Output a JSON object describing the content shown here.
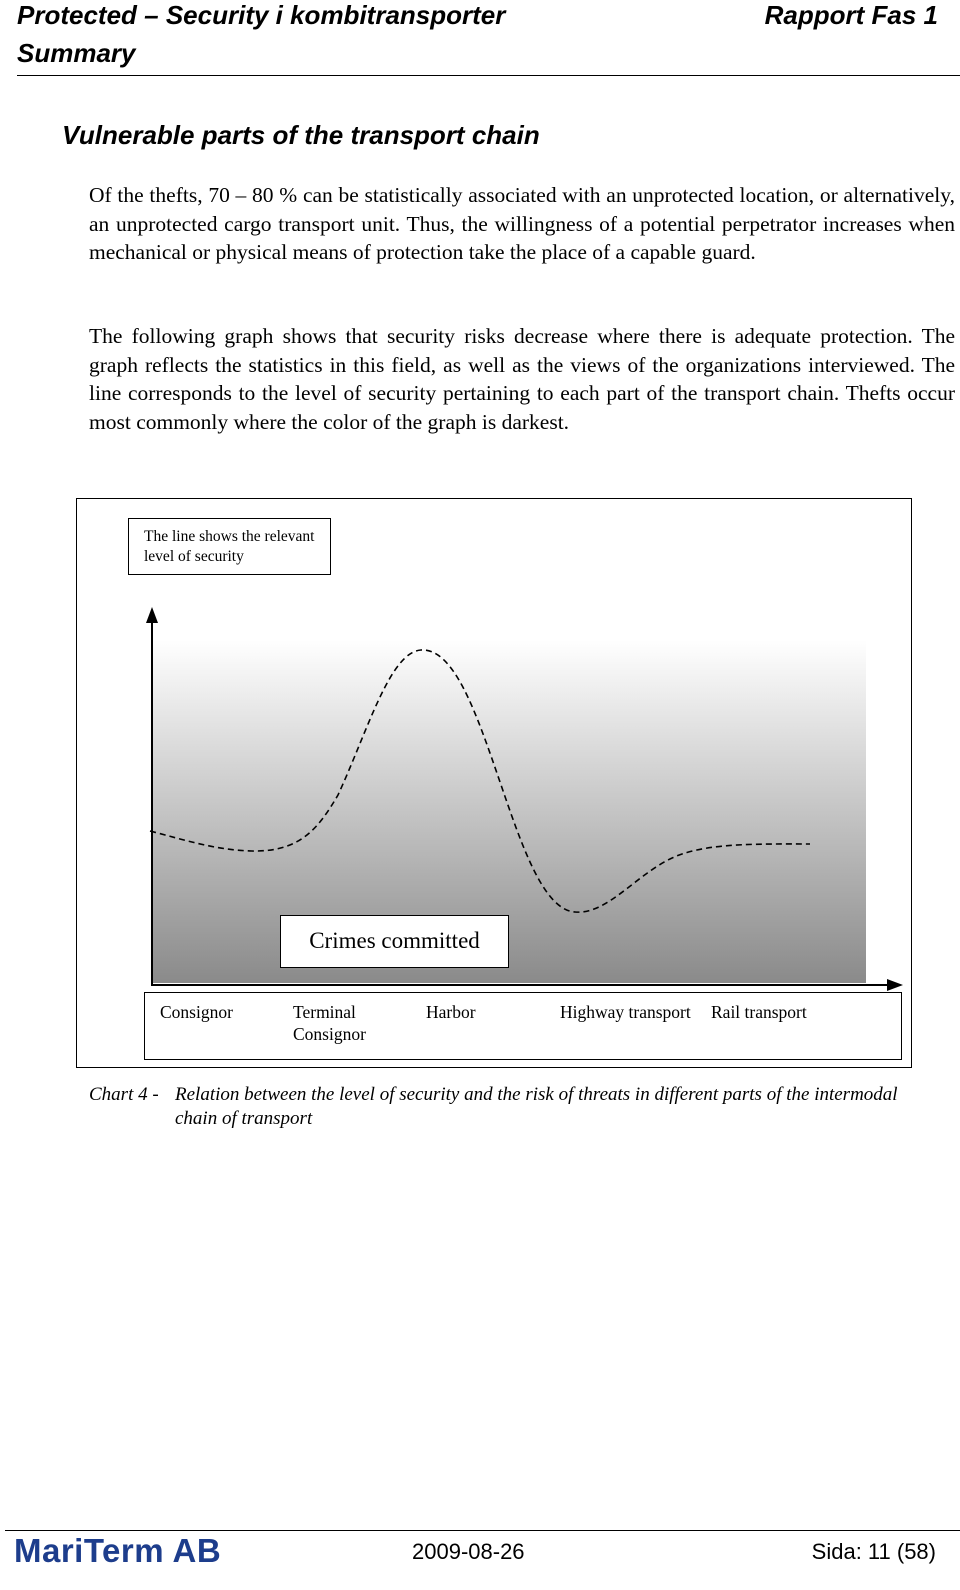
{
  "header": {
    "title": "Protected – Security i kombitransporter",
    "report": "Rapport Fas 1",
    "subtitle": "Summary"
  },
  "section": {
    "title": "Vulnerable parts of the transport chain"
  },
  "paragraphs": [
    "Of the thefts, 70 – 80 % can be statistically associated with an unprotected location, or alternatively, an unprotected cargo transport unit. Thus, the willingness of a potential perpetrator increases when mechanical or physical means of protection take the place of a capable guard.",
    "The following graph shows that security risks decrease where there is adequate protection. The graph reflects the statistics in this field, as well as the views of the organizations interviewed. The line corresponds to the level of security pertaining to each part of the transport chain. Thefts occur most commonly where the color of the graph is darkest."
  ],
  "figure": {
    "note": "The line shows the relevant level of security",
    "crimes_label": "Crimes committed",
    "stages": [
      {
        "line1": "Consignor",
        "line2": ""
      },
      {
        "line1": "Terminal",
        "line2": "Consignor"
      },
      {
        "line1": "Harbor",
        "line2": ""
      },
      {
        "line1": "Highway transport",
        "line2": ""
      },
      {
        "line1": "Rail transport",
        "line2": ""
      }
    ],
    "colors": {
      "gradient_top": "#ffffff",
      "gradient_bottom": "#8a8a8a",
      "line": "#000000"
    }
  },
  "caption": {
    "label": "Chart 4 -",
    "text": "Relation between the level of security and the risk of threats in different parts of the intermodal chain of transport"
  },
  "footer": {
    "company": "MariTerm AB",
    "date": "2009-08-26",
    "page": "Sida: 11 (58)"
  }
}
